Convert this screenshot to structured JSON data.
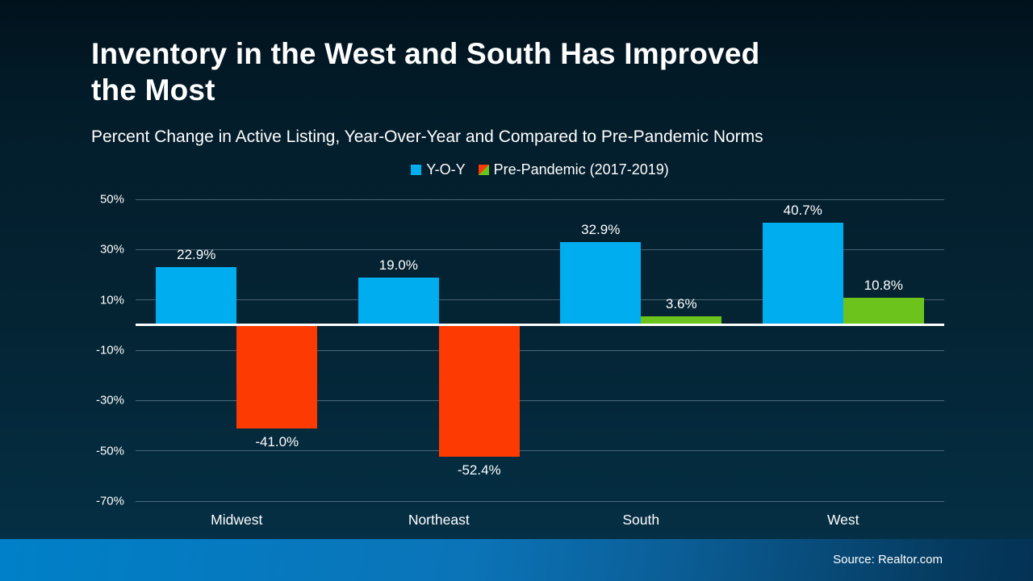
{
  "title": {
    "line1": "Inventory in the West and South Has Improved",
    "line2": "the Most"
  },
  "subtitle": "Percent Change in Active Listing, Year-Over-Year and Compared to Pre-Pandemic Norms",
  "legend": {
    "items": [
      {
        "label": "Y-O-Y",
        "swatch": "solid",
        "color": "#00AEEF"
      },
      {
        "label": "Pre-Pandemic (2017-2019)",
        "swatch": "split",
        "color_negative": "#FD3A02",
        "color_positive": "#6CC31C"
      }
    ]
  },
  "footer": {
    "source": "Source: Realtor.com"
  },
  "chart_data": {
    "type": "bar",
    "title": "Inventory in the West and South Has Improved the Most",
    "subtitle": "Percent Change in Active Listing, Year-Over-Year and Compared to Pre-Pandemic Norms",
    "categories": [
      "Midwest",
      "Northeast",
      "South",
      "West"
    ],
    "series": [
      {
        "name": "Y-O-Y",
        "color": "#00AEEF",
        "values": [
          22.9,
          19.0,
          32.9,
          40.7
        ],
        "labels": [
          "22.9%",
          "19.0%",
          "32.9%",
          "40.7%"
        ]
      },
      {
        "name": "Pre-Pandemic (2017-2019)",
        "color_positive": "#6CC31C",
        "color_negative": "#FD3A02",
        "values": [
          -41.0,
          -52.4,
          3.6,
          10.8
        ],
        "labels": [
          "-41.0%",
          "-52.4%",
          "3.6%",
          "10.8%"
        ]
      }
    ],
    "ylim": [
      -70,
      50
    ],
    "y_ticks": [
      50,
      30,
      10,
      -10,
      -30,
      -50,
      -70
    ],
    "y_tick_labels": [
      "50%",
      "30%",
      "10%",
      "-10%",
      "-30%",
      "-50%",
      "-70%"
    ],
    "grid": true,
    "legend_position": "top",
    "source": "Source: Realtor.com"
  }
}
